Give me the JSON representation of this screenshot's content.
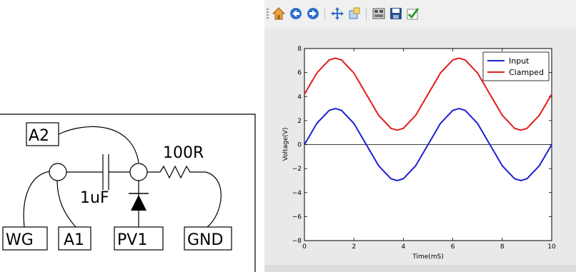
{
  "schematic": {
    "labels": {
      "a2": "A2",
      "resistor": "100R",
      "capacitor": "1uF",
      "wg": "WG",
      "a1": "A1",
      "pv1": "PV1",
      "gnd": "GND"
    }
  },
  "toolbar": {
    "buttons": [
      {
        "name": "home-button",
        "icon": "home-icon"
      },
      {
        "name": "back-button",
        "icon": "arrow-left-icon"
      },
      {
        "name": "forward-button",
        "icon": "arrow-right-icon"
      },
      {
        "name": "pan-button",
        "icon": "move-icon"
      },
      {
        "name": "zoom-button",
        "icon": "zoom-rect-icon"
      },
      {
        "name": "subplots-button",
        "icon": "subplots-icon"
      },
      {
        "name": "save-button",
        "icon": "floppy-disk-icon"
      },
      {
        "name": "edit-button",
        "icon": "checkmark-icon"
      }
    ]
  },
  "chart_data": {
    "type": "line",
    "xlabel": "Time(mS)",
    "ylabel": "Voltage(V)",
    "xlim": [
      0,
      10
    ],
    "ylim": [
      -8,
      8
    ],
    "xticks": [
      "0",
      "2",
      "4",
      "6",
      "8",
      "10"
    ],
    "yticks": [
      "−8",
      "−6",
      "−4",
      "−2",
      "0",
      "2",
      "4",
      "6",
      "8"
    ],
    "grid": false,
    "legend_position": "top-right",
    "zero_line": true,
    "series": [
      {
        "name": "Input",
        "color": "#1f1fd6",
        "x": [
          0,
          0.5,
          1,
          1.25,
          1.5,
          2,
          2.5,
          3,
          3.5,
          3.75,
          4,
          4.5,
          5,
          5.5,
          6,
          6.25,
          6.5,
          7,
          7.5,
          8,
          8.5,
          8.75,
          9,
          9.5,
          10
        ],
        "y": [
          0.0,
          1.76,
          2.85,
          3.0,
          2.85,
          1.76,
          0.0,
          -1.76,
          -2.85,
          -3.0,
          -2.85,
          -1.76,
          0.0,
          1.76,
          2.85,
          3.0,
          2.85,
          1.76,
          0.0,
          -1.76,
          -2.85,
          -3.0,
          -2.85,
          -1.76,
          0.0
        ]
      },
      {
        "name": "Clamped",
        "color": "#e21b1b",
        "x": [
          0,
          0.5,
          1,
          1.25,
          1.5,
          2,
          2.5,
          3,
          3.5,
          3.75,
          4,
          4.5,
          5,
          5.5,
          6,
          6.25,
          6.5,
          7,
          7.5,
          8,
          8.5,
          8.75,
          9,
          9.5,
          10
        ],
        "y": [
          4.2,
          5.96,
          7.05,
          7.2,
          7.05,
          5.96,
          4.2,
          2.44,
          1.35,
          1.2,
          1.35,
          2.44,
          4.2,
          5.96,
          7.05,
          7.2,
          7.05,
          5.96,
          4.2,
          2.44,
          1.35,
          1.2,
          1.35,
          2.44,
          4.2
        ]
      }
    ]
  }
}
